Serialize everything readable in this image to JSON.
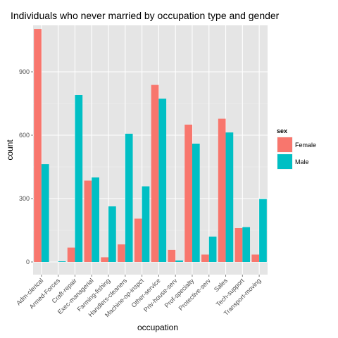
{
  "chart_data": {
    "type": "bar",
    "title": "Individuals who never married by occupation type and gender",
    "xlabel": "occupation",
    "ylabel": "count",
    "ylim": [
      -60,
      1120
    ],
    "yticks": [
      0,
      300,
      600,
      900
    ],
    "grid": true,
    "legend": {
      "title": "sex",
      "placement": "right"
    },
    "categories": [
      "Adm-clerical",
      "Armed-Forces",
      "Craft-repair",
      "Exec-managerial",
      "Farming-fishing",
      "Handlers-cleaners",
      "Machine-op-inspct",
      "Other-service",
      "Priv-house-serv",
      "Prof-specialty",
      "Protective-serv",
      "Sales",
      "Tech-support",
      "Transport-moving"
    ],
    "series": [
      {
        "name": "Female",
        "color": "#F8766D",
        "values": [
          1103,
          0,
          68,
          385,
          22,
          83,
          205,
          838,
          57,
          650,
          35,
          678,
          160,
          35
        ]
      },
      {
        "name": "Male",
        "color": "#00BFC4",
        "values": [
          463,
          3,
          790,
          400,
          263,
          607,
          358,
          773,
          7,
          560,
          120,
          613,
          165,
          298
        ]
      }
    ]
  }
}
